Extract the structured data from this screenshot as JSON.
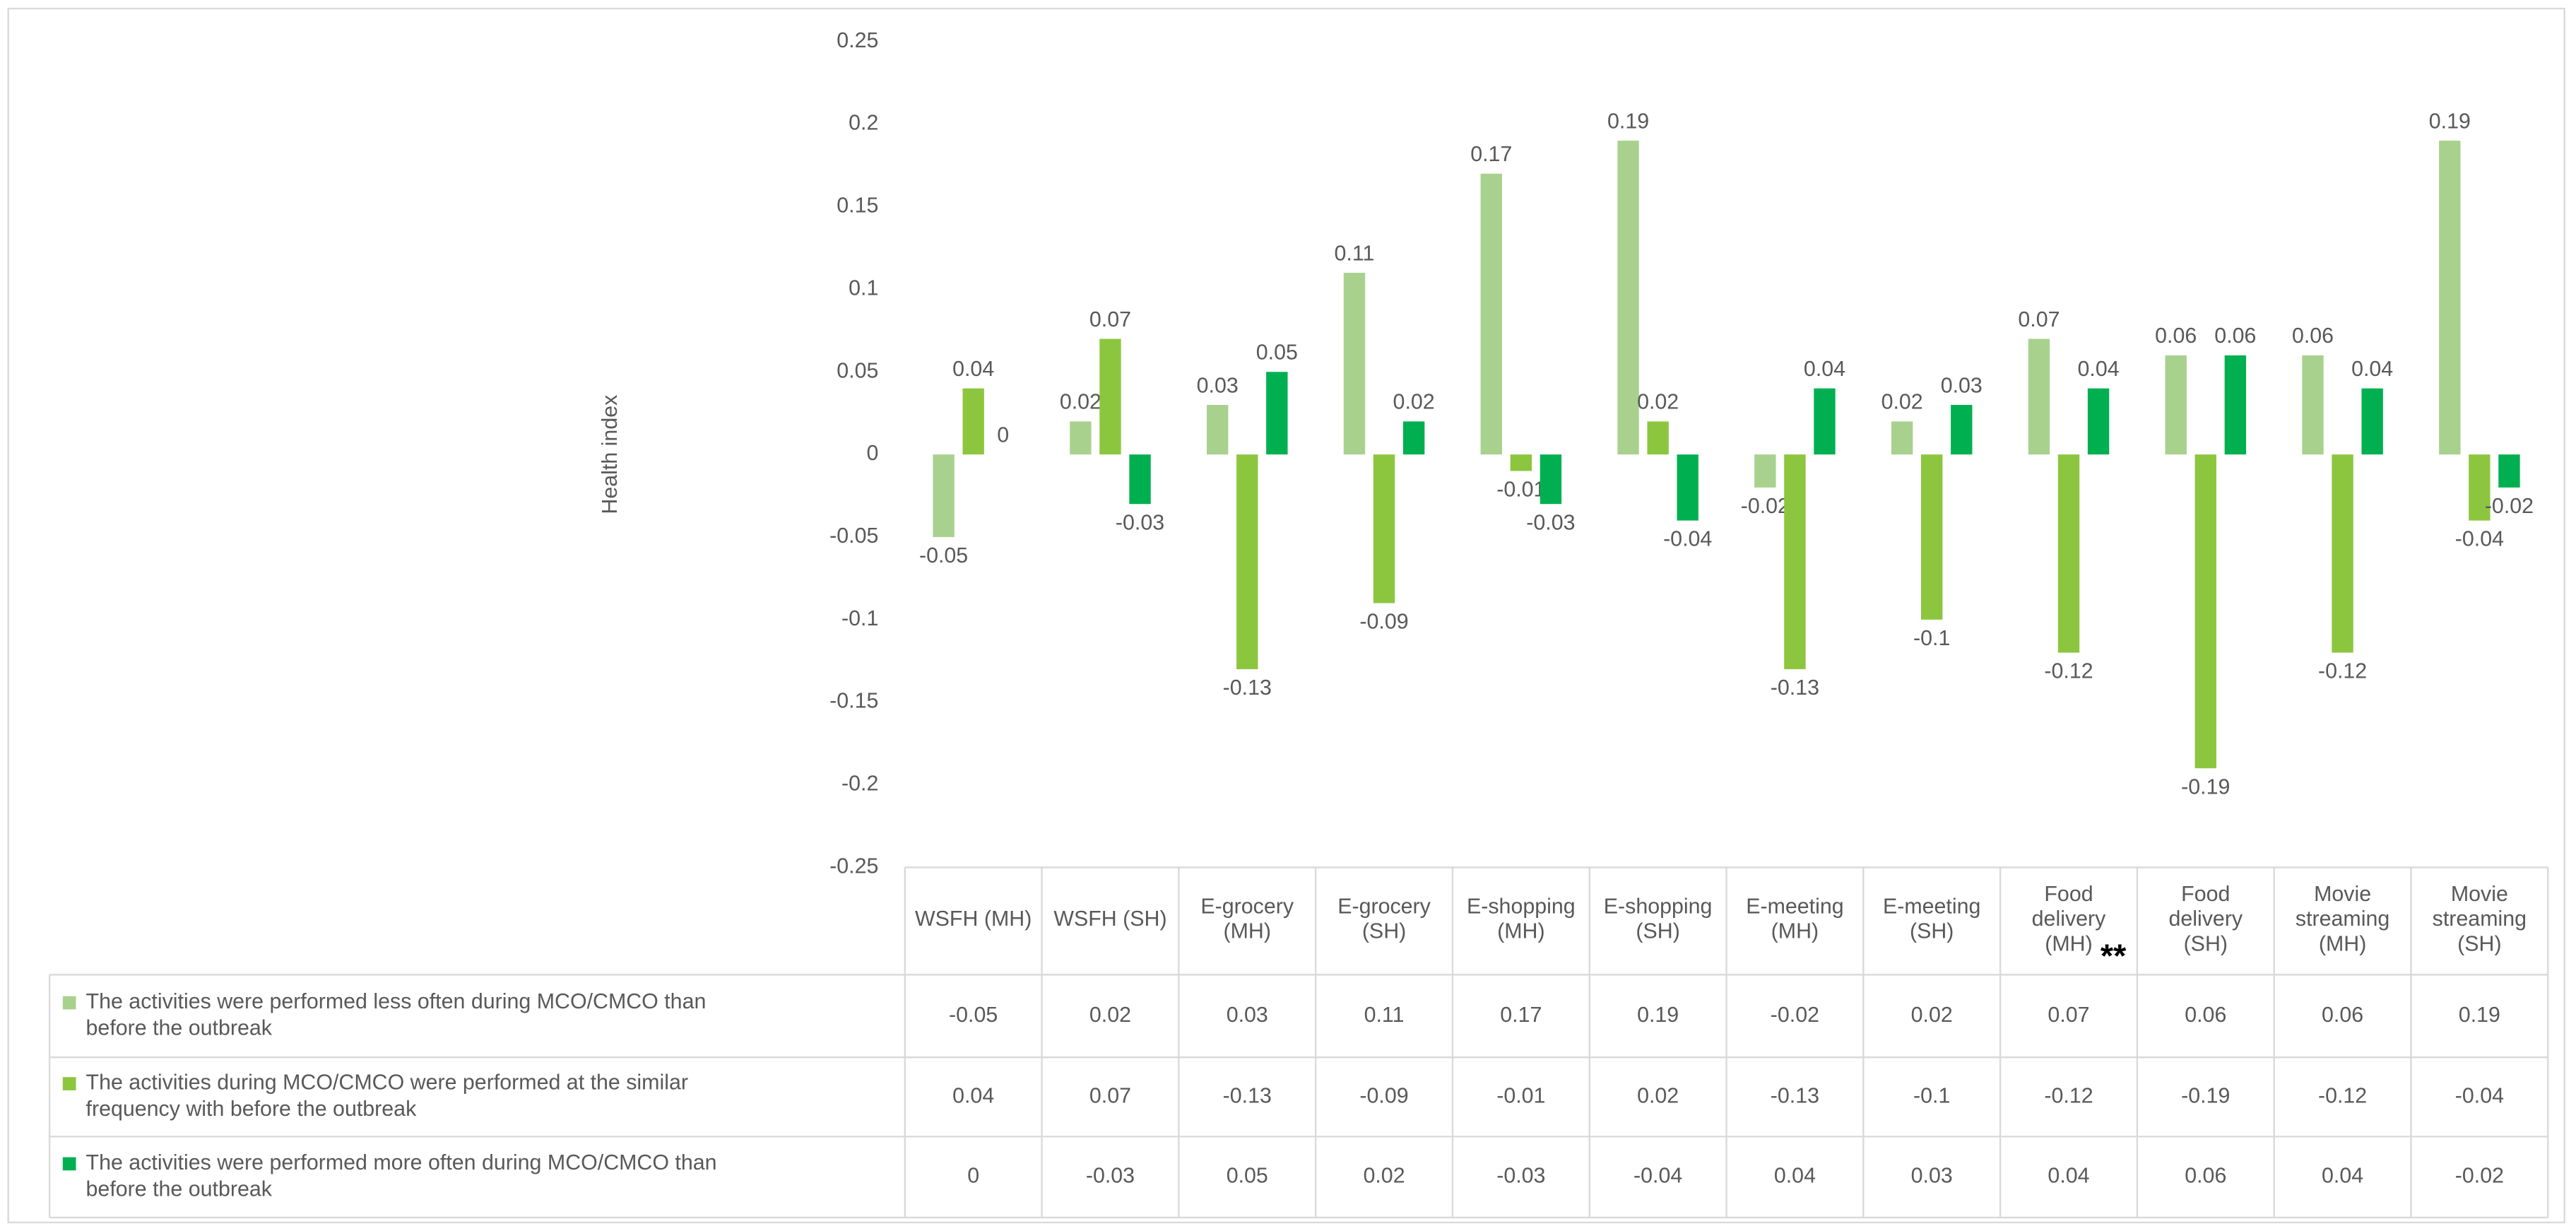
{
  "chart_data": {
    "type": "bar",
    "y_label": "Health index",
    "categories": [
      "WSFH (MH)",
      "WSFH (SH)",
      "E-grocery (MH)",
      "E-grocery (SH)",
      "E-shopping (MH)",
      "E-shopping (SH)",
      "E-meeting (MH)",
      "E-meeting (SH)",
      "Food delivery (MH)",
      "Food delivery (SH)",
      "Movie streaming (MH)",
      "Movie streaming (SH)"
    ],
    "series": [
      {
        "name": "The activities were performed less often during MCO/CMCO than before the outbreak",
        "color": "#a9d18e",
        "values": [
          -0.05,
          0.02,
          0.03,
          0.11,
          0.17,
          0.19,
          -0.02,
          0.02,
          0.07,
          0.06,
          0.06,
          0.19
        ]
      },
      {
        "name": "The activities during MCO/CMCO were performed at the similar frequency with before the outbreak",
        "color": "#8cc63e",
        "values": [
          0.04,
          0.07,
          -0.13,
          -0.09,
          -0.01,
          0.02,
          -0.13,
          -0.1,
          -0.12,
          -0.19,
          -0.12,
          -0.04
        ]
      },
      {
        "name": "The activities were performed more often during MCO/CMCO than before the outbreak",
        "color": "#00b050",
        "values": [
          0,
          -0.03,
          0.05,
          0.02,
          -0.03,
          -0.04,
          0.04,
          0.03,
          0.04,
          0.06,
          0.04,
          -0.02
        ]
      }
    ],
    "annotation": "**",
    "ylim": [
      -0.25,
      0.25
    ],
    "yticks": [
      0.25,
      0.2,
      0.15,
      0.1,
      0.05,
      0,
      -0.05,
      -0.1,
      -0.15,
      -0.2,
      -0.25
    ],
    "grid": false
  }
}
